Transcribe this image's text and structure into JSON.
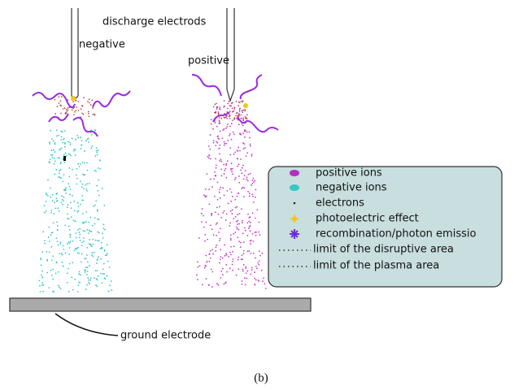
{
  "header": {
    "title": "discharge electrods"
  },
  "electrodes": {
    "negative": "negative",
    "positive": "positive"
  },
  "legend": [
    "positive ions",
    "negative ions",
    "electrons",
    "photoelectric effect",
    "recombination/photon emissio",
    "limit of the disruptive area",
    "limit of the plasma area"
  ],
  "ground": "ground electrode",
  "caption": "(b)"
}
